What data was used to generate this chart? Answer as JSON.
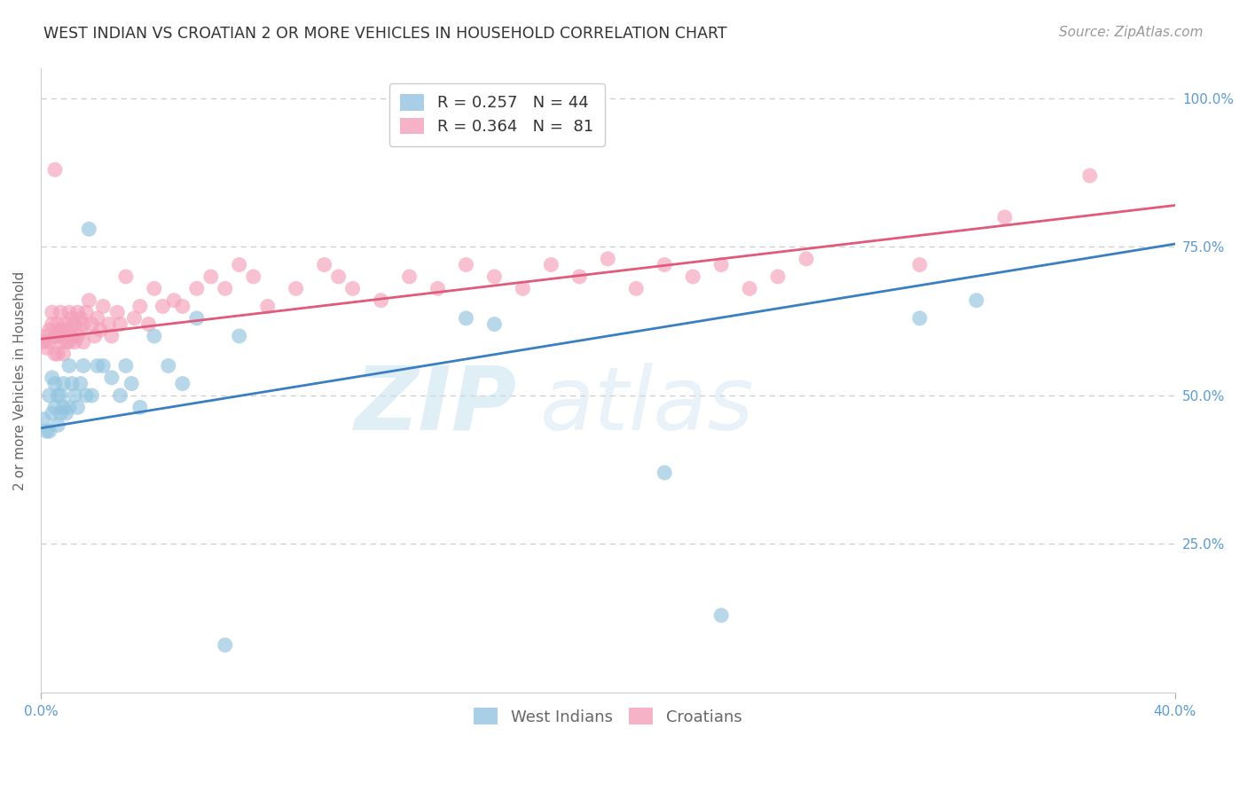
{
  "title": "WEST INDIAN VS CROATIAN 2 OR MORE VEHICLES IN HOUSEHOLD CORRELATION CHART",
  "source": "Source: ZipAtlas.com",
  "ylabel": "2 or more Vehicles in Household",
  "xlim": [
    0.0,
    0.4
  ],
  "ylim": [
    0.0,
    1.05
  ],
  "legend_blue_r": "0.257",
  "legend_blue_n": "44",
  "legend_pink_r": "0.364",
  "legend_pink_n": "81",
  "blue_color": "#93c4e0",
  "pink_color": "#f4a0bb",
  "blue_line_color": "#3a7fc1",
  "pink_line_color": "#e05a7a",
  "watermark_zip": "ZIP",
  "watermark_atlas": "atlas",
  "west_indians_x": [
    0.001,
    0.002,
    0.003,
    0.003,
    0.004,
    0.004,
    0.005,
    0.005,
    0.006,
    0.006,
    0.007,
    0.007,
    0.008,
    0.008,
    0.009,
    0.01,
    0.01,
    0.011,
    0.012,
    0.013,
    0.014,
    0.015,
    0.016,
    0.017,
    0.018,
    0.02,
    0.022,
    0.025,
    0.028,
    0.03,
    0.032,
    0.035,
    0.04,
    0.045,
    0.05,
    0.055,
    0.065,
    0.07,
    0.15,
    0.16,
    0.22,
    0.24,
    0.31,
    0.33
  ],
  "west_indians_y": [
    0.46,
    0.44,
    0.44,
    0.5,
    0.47,
    0.53,
    0.48,
    0.52,
    0.45,
    0.5,
    0.47,
    0.5,
    0.48,
    0.52,
    0.47,
    0.48,
    0.55,
    0.52,
    0.5,
    0.48,
    0.52,
    0.55,
    0.5,
    0.78,
    0.5,
    0.55,
    0.55,
    0.53,
    0.5,
    0.55,
    0.52,
    0.48,
    0.6,
    0.55,
    0.52,
    0.63,
    0.08,
    0.6,
    0.63,
    0.62,
    0.37,
    0.13,
    0.63,
    0.66
  ],
  "croatians_x": [
    0.001,
    0.002,
    0.002,
    0.003,
    0.003,
    0.004,
    0.004,
    0.005,
    0.005,
    0.005,
    0.006,
    0.006,
    0.006,
    0.007,
    0.007,
    0.007,
    0.008,
    0.008,
    0.009,
    0.009,
    0.01,
    0.01,
    0.01,
    0.011,
    0.011,
    0.012,
    0.012,
    0.013,
    0.013,
    0.014,
    0.014,
    0.015,
    0.015,
    0.016,
    0.017,
    0.018,
    0.019,
    0.02,
    0.021,
    0.022,
    0.024,
    0.025,
    0.027,
    0.028,
    0.03,
    0.033,
    0.035,
    0.038,
    0.04,
    0.043,
    0.047,
    0.05,
    0.055,
    0.06,
    0.065,
    0.07,
    0.075,
    0.08,
    0.09,
    0.1,
    0.105,
    0.11,
    0.12,
    0.13,
    0.14,
    0.15,
    0.16,
    0.17,
    0.18,
    0.19,
    0.2,
    0.21,
    0.22,
    0.23,
    0.24,
    0.25,
    0.26,
    0.27,
    0.31,
    0.34,
    0.37
  ],
  "croatians_y": [
    0.59,
    0.58,
    0.6,
    0.61,
    0.59,
    0.62,
    0.64,
    0.57,
    0.6,
    0.88,
    0.57,
    0.6,
    0.62,
    0.59,
    0.61,
    0.64,
    0.57,
    0.61,
    0.59,
    0.62,
    0.59,
    0.61,
    0.64,
    0.6,
    0.63,
    0.59,
    0.62,
    0.6,
    0.64,
    0.61,
    0.63,
    0.59,
    0.62,
    0.64,
    0.66,
    0.62,
    0.6,
    0.63,
    0.61,
    0.65,
    0.62,
    0.6,
    0.64,
    0.62,
    0.7,
    0.63,
    0.65,
    0.62,
    0.68,
    0.65,
    0.66,
    0.65,
    0.68,
    0.7,
    0.68,
    0.72,
    0.7,
    0.65,
    0.68,
    0.72,
    0.7,
    0.68,
    0.66,
    0.7,
    0.68,
    0.72,
    0.7,
    0.68,
    0.72,
    0.7,
    0.73,
    0.68,
    0.72,
    0.7,
    0.72,
    0.68,
    0.7,
    0.73,
    0.72,
    0.8,
    0.87
  ],
  "blue_line_x": [
    0.0,
    0.4
  ],
  "blue_line_y": [
    0.445,
    0.755
  ],
  "pink_line_x": [
    0.0,
    0.4
  ],
  "pink_line_y": [
    0.595,
    0.82
  ],
  "title_fontsize": 12.5,
  "source_fontsize": 11,
  "label_fontsize": 11,
  "tick_fontsize": 11,
  "legend_fontsize": 13,
  "background_color": "#ffffff",
  "grid_color": "#cccccc",
  "tick_color": "#5b9bd5"
}
